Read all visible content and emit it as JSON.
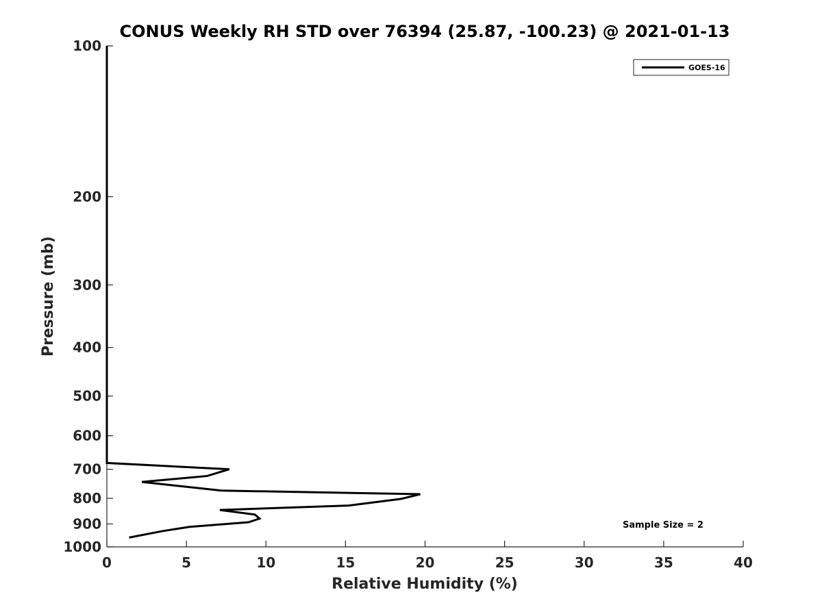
{
  "chart_data": {
    "type": "line",
    "title": "CONUS Weekly RH STD over 76394 (25.87, -100.23) @ 2021-01-13",
    "xlabel": "Relative Humidity (%)",
    "ylabel": "Pressure (mb)",
    "xlim": [
      0,
      40
    ],
    "ylim": [
      100,
      1000
    ],
    "yscale": "log",
    "y_reversed": true,
    "xticks": [
      0,
      5,
      10,
      15,
      20,
      25,
      30,
      35,
      40
    ],
    "yticks": [
      100,
      200,
      300,
      400,
      500,
      600,
      700,
      800,
      900,
      1000
    ],
    "grid": false,
    "legend_position": "top-right",
    "series": [
      {
        "name": "GOES-16",
        "color": "#000000",
        "points": [
          {
            "x": 0,
            "y": 100
          },
          {
            "x": 0,
            "y": 200
          },
          {
            "x": 0,
            "y": 300
          },
          {
            "x": 0,
            "y": 400
          },
          {
            "x": 0,
            "y": 500
          },
          {
            "x": 0,
            "y": 600
          },
          {
            "x": 0,
            "y": 680
          },
          {
            "x": 7.7,
            "y": 700
          },
          {
            "x": 6.3,
            "y": 722
          },
          {
            "x": 2.2,
            "y": 742
          },
          {
            "x": 7.2,
            "y": 772
          },
          {
            "x": 19.7,
            "y": 785
          },
          {
            "x": 18.5,
            "y": 802
          },
          {
            "x": 15.2,
            "y": 827
          },
          {
            "x": 7.1,
            "y": 844
          },
          {
            "x": 9.3,
            "y": 862
          },
          {
            "x": 9.6,
            "y": 878
          },
          {
            "x": 8.9,
            "y": 893
          },
          {
            "x": 5.2,
            "y": 912
          },
          {
            "x": 3.5,
            "y": 930
          },
          {
            "x": 1.4,
            "y": 958
          }
        ]
      }
    ],
    "annotations": [
      {
        "text": "Sample Size = 2"
      }
    ]
  }
}
